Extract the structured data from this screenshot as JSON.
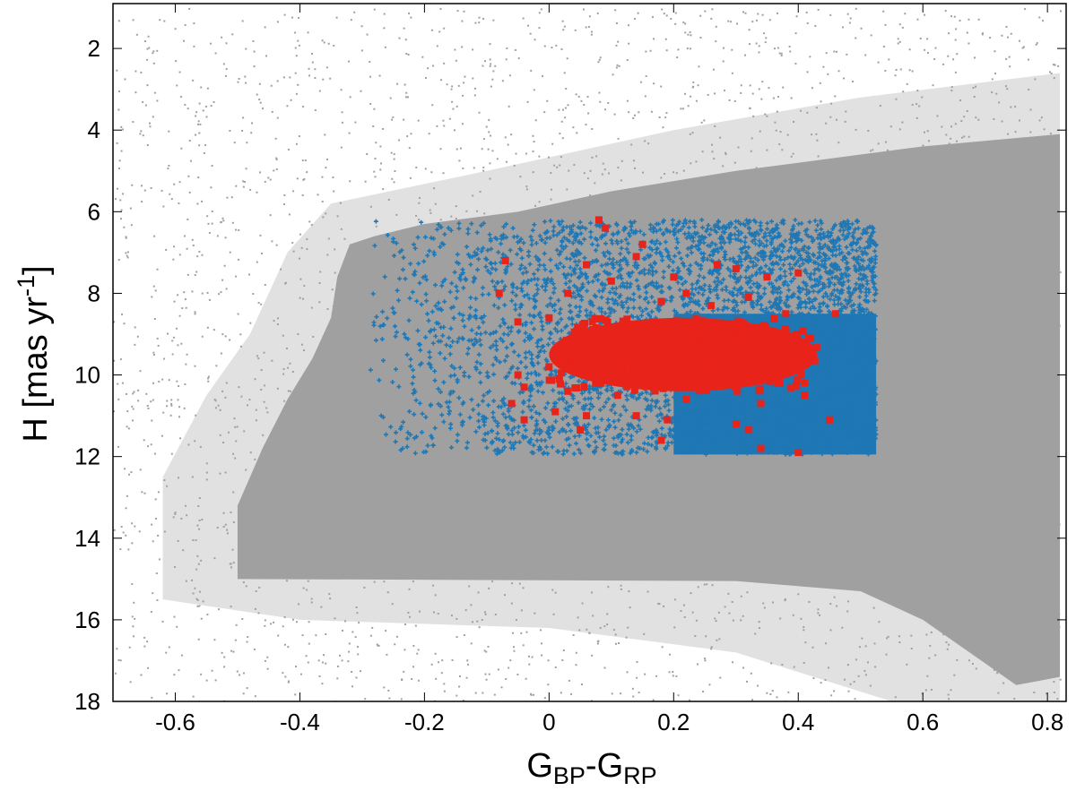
{
  "chart_data": {
    "type": "scatter",
    "title": "",
    "xlabel": {
      "main": "G",
      "sub1": "BP",
      "mid": "-G",
      "sub2": "RP"
    },
    "ylabel": {
      "main": "H [mas yr",
      "sup": "-1",
      "end": "]"
    },
    "xlim": [
      -0.7,
      0.83
    ],
    "ylim": [
      18,
      0.9
    ],
    "y_inverted": true,
    "grid": false,
    "legend": "none",
    "x_ticks": [
      -0.6,
      -0.4,
      -0.2,
      0,
      0.2,
      0.4,
      0.6,
      0.8
    ],
    "x_tick_labels": [
      "-0.6",
      "-0.4",
      "-0.2",
      "0",
      "0.2",
      "0.4",
      "0.6",
      "0.8"
    ],
    "y_ticks": [
      2,
      4,
      6,
      8,
      10,
      12,
      14,
      16,
      18
    ],
    "y_tick_labels": [
      "2",
      "4",
      "6",
      "8",
      "10",
      "12",
      "14",
      "16",
      "18"
    ],
    "series": [
      {
        "marker": "small-dot",
        "color": "#a0a0a0",
        "description_regions": [
          {
            "x": [
              -0.7,
              0.82
            ],
            "y": [
              1.0,
              18.0
            ],
            "density": "sparse"
          },
          {
            "x": [
              -0.5,
              0.82
            ],
            "y": [
              6.5,
              15.0
            ],
            "density": "dense"
          },
          {
            "x": [
              0.5,
              0.82
            ],
            "y": [
              4.0,
              18.0
            ],
            "density": "saturated"
          }
        ]
      },
      {
        "marker": "plus",
        "color": "#1f77b4",
        "box": {
          "x": [
            -0.3,
            0.525
          ],
          "y": [
            6.2,
            11.95
          ]
        },
        "dense_core": {
          "x": [
            0.2,
            0.525
          ],
          "y": [
            8.5,
            11.95
          ]
        }
      },
      {
        "marker": "square",
        "color": "#e8231a",
        "points": [
          [
            0.08,
            6.2
          ],
          [
            0.09,
            6.4
          ],
          [
            0.15,
            6.8
          ],
          [
            0.14,
            7.1
          ],
          [
            0.06,
            7.3
          ],
          [
            -0.07,
            7.2
          ],
          [
            0.27,
            7.3
          ],
          [
            0.3,
            7.4
          ],
          [
            0.4,
            7.5
          ],
          [
            0.2,
            7.6
          ],
          [
            0.35,
            7.6
          ],
          [
            0.1,
            7.7
          ],
          [
            -0.08,
            8.0
          ],
          [
            0.03,
            8.0
          ],
          [
            0.22,
            8.0
          ],
          [
            0.32,
            8.1
          ],
          [
            0.18,
            8.2
          ],
          [
            0.26,
            8.3
          ],
          [
            0.38,
            8.5
          ],
          [
            0.46,
            8.5
          ],
          [
            0.0,
            8.6
          ],
          [
            -0.05,
            8.7
          ],
          [
            0.12,
            8.8
          ],
          [
            0.28,
            8.9
          ],
          [
            0.36,
            9.0
          ],
          [
            0.42,
            9.1
          ],
          [
            0.05,
            9.2
          ],
          [
            0.15,
            9.3
          ],
          [
            0.24,
            9.2
          ],
          [
            0.31,
            9.3
          ],
          [
            0.4,
            9.6
          ],
          [
            0.0,
            9.8
          ],
          [
            0.09,
            9.9
          ],
          [
            0.2,
            9.9
          ],
          [
            0.29,
            10.0
          ],
          [
            0.37,
            10.2
          ],
          [
            -0.05,
            10.0
          ],
          [
            -0.04,
            10.3
          ],
          [
            0.03,
            10.4
          ],
          [
            0.11,
            10.5
          ],
          [
            0.22,
            10.6
          ],
          [
            0.34,
            10.7
          ],
          [
            0.41,
            10.5
          ],
          [
            -0.06,
            10.7
          ],
          [
            0.01,
            10.9
          ],
          [
            0.06,
            11.0
          ],
          [
            -0.04,
            11.1
          ],
          [
            0.14,
            11.0
          ],
          [
            0.19,
            11.1
          ],
          [
            0.3,
            11.2
          ],
          [
            0.45,
            11.1
          ],
          [
            0.05,
            11.35
          ],
          [
            0.32,
            11.35
          ],
          [
            0.18,
            11.6
          ],
          [
            0.34,
            11.8
          ],
          [
            0.4,
            11.9
          ]
        ],
        "dense_core": {
          "x": [
            0.0,
            0.43
          ],
          "y": [
            8.6,
            10.4
          ]
        }
      }
    ]
  }
}
